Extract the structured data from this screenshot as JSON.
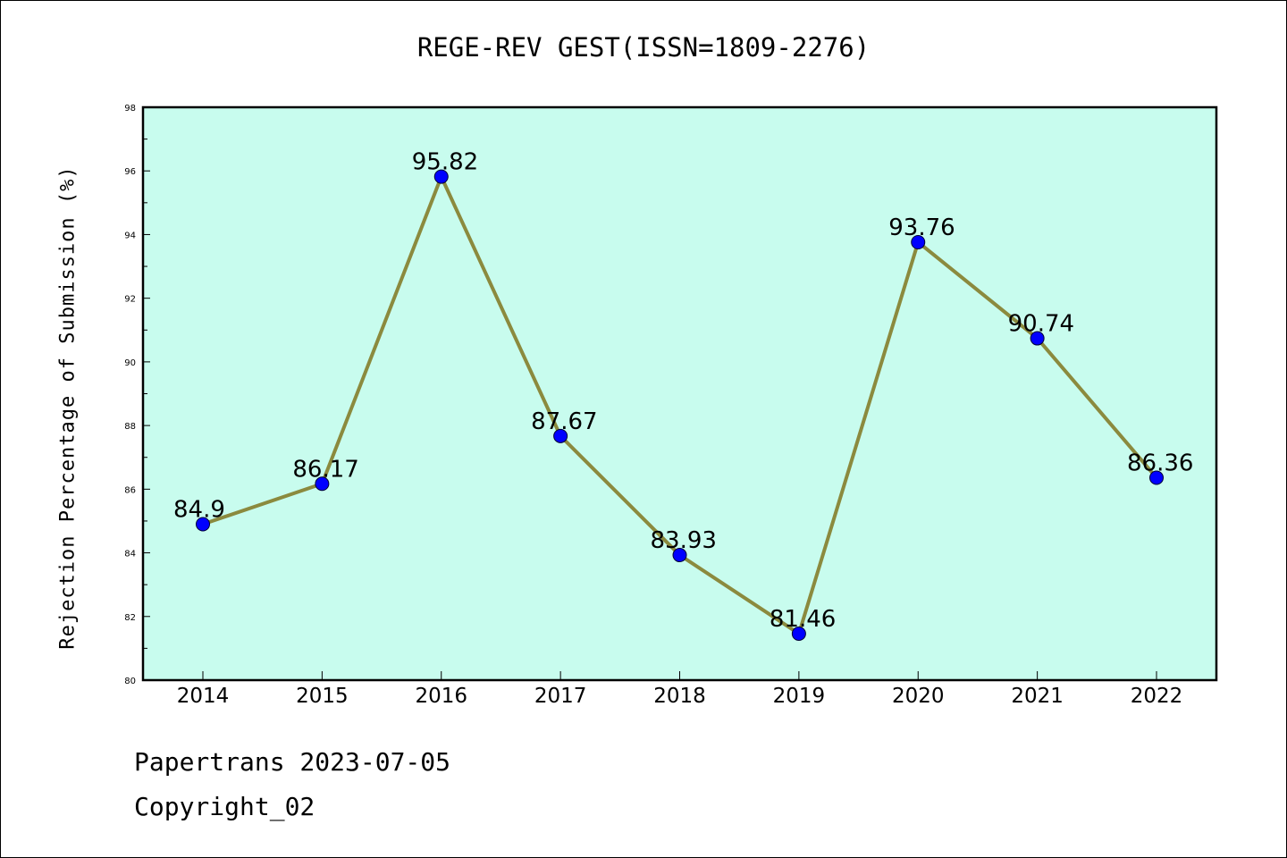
{
  "chart_data": {
    "type": "line",
    "title": "REGE-REV GEST(ISSN=1809-2276)",
    "xlabel": "",
    "ylabel": "Rejection Percentage of Submission (%)",
    "categories": [
      "2014",
      "2015",
      "2016",
      "2017",
      "2018",
      "2019",
      "2020",
      "2021",
      "2022"
    ],
    "series": [
      {
        "values": [
          84.9,
          86.17,
          95.82,
          87.67,
          83.93,
          81.46,
          93.76,
          90.74,
          86.36
        ],
        "data_labels": [
          "84.9",
          "86.17",
          "95.82",
          "87.67",
          "83.93",
          "81.46",
          "93.76",
          "90.74",
          "86.36"
        ]
      }
    ],
    "ylim": [
      80,
      98
    ],
    "yticks": [
      "80",
      "82",
      "84",
      "86",
      "88",
      "90",
      "92",
      "94",
      "96",
      "98"
    ],
    "grid": false,
    "colors": {
      "plot_background": "#c8fcee",
      "line": "#8b8a3e",
      "marker": "#0000ff"
    }
  },
  "footer": {
    "line1": "Papertrans 2023-07-05",
    "line2": "Copyright_02"
  }
}
